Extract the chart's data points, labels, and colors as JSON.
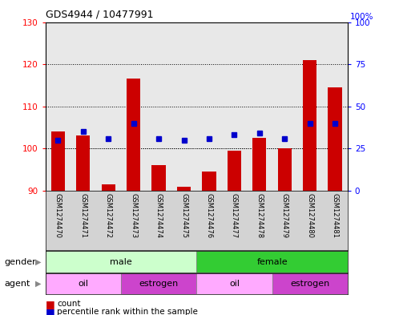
{
  "title": "GDS4944 / 10477991",
  "samples": [
    "GSM1274470",
    "GSM1274471",
    "GSM1274472",
    "GSM1274473",
    "GSM1274474",
    "GSM1274475",
    "GSM1274476",
    "GSM1274477",
    "GSM1274478",
    "GSM1274479",
    "GSM1274480",
    "GSM1274481"
  ],
  "counts": [
    104,
    103,
    91.5,
    116.5,
    96,
    91,
    94.5,
    99.5,
    102.5,
    100,
    121,
    114.5
  ],
  "percentile_ranks": [
    30,
    35,
    31,
    40,
    31,
    30,
    31,
    33,
    34,
    31,
    40,
    40
  ],
  "bar_color": "#cc0000",
  "dot_color": "#0000cc",
  "ylim_left": [
    90,
    130
  ],
  "ylim_right": [
    0,
    100
  ],
  "yticks_left": [
    90,
    100,
    110,
    120,
    130
  ],
  "yticks_right": [
    0,
    25,
    50,
    75,
    100
  ],
  "grid_values": [
    100,
    110,
    120
  ],
  "gender_male_color_light": "#ccffcc",
  "gender_female_color": "#33cc33",
  "agent_oil_color": "#ffaaff",
  "agent_estrogen_color": "#cc44cc",
  "background_color": "#ffffff",
  "bar_facecolor": "#e8e8e8"
}
